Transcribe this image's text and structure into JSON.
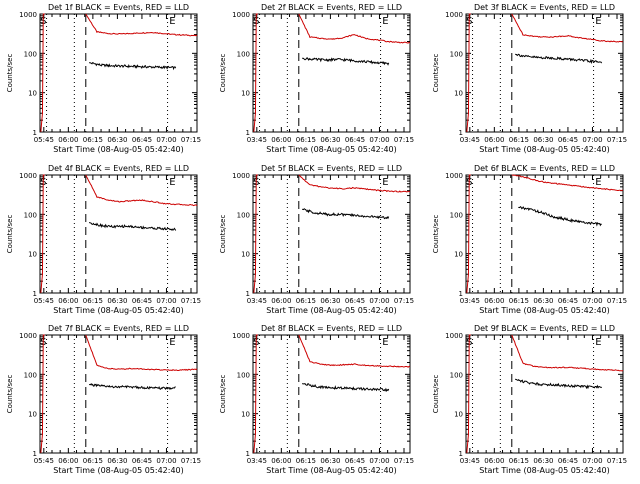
{
  "figure": {
    "background": "#ffffff",
    "axis_color": "#000000"
  },
  "chart_data": [
    {
      "type": "line",
      "title": "Det 1f BLACK = Events, RED = LLD",
      "xlabel": "Start Time (08-Aug-05 05:42:40)",
      "ylabel": "Counts/sec",
      "x_ticks": [
        "05:45",
        "06:00",
        "06:15",
        "06:30",
        "06:45",
        "07:00",
        "07:15"
      ],
      "y_ticks": [
        "1",
        "10",
        "100",
        "1000"
      ],
      "y_scale": "log",
      "xlim_min": [
        0,
        96
      ],
      "ylim": [
        1,
        1000
      ],
      "markers": {
        "S": 2,
        "E": 81
      },
      "dotted_lines_min": [
        4,
        21,
        78
      ],
      "dashed_lines_min": [
        28
      ],
      "grid": false,
      "series": [
        {
          "color": "#cc0000",
          "start_min": 28,
          "end_min": 96,
          "values": [
            1000,
            350,
            320,
            310,
            320,
            330,
            340,
            320,
            300,
            290,
            280
          ]
        },
        {
          "color": "#000000",
          "start_min": 30,
          "end_min": 83,
          "values": [
            58,
            50,
            48,
            47,
            46,
            45,
            44,
            43
          ]
        }
      ]
    },
    {
      "type": "line",
      "title": "Det 2f BLACK = Events, RED = LLD",
      "xlabel": "Start Time (08-Aug-05 05:42:40)",
      "ylabel": "Counts/sec",
      "x_ticks": [
        "03:45",
        "06:00",
        "06:15",
        "06:30",
        "06:45",
        "07:00",
        "07:15"
      ],
      "y_ticks": [
        "1",
        "10",
        "100",
        "1000"
      ],
      "y_scale": "log",
      "xlim_min": [
        0,
        96
      ],
      "ylim": [
        1,
        1000
      ],
      "markers": {
        "S": 2,
        "E": 81
      },
      "dotted_lines_min": [
        4,
        21,
        78
      ],
      "dashed_lines_min": [
        28
      ],
      "grid": false,
      "series": [
        {
          "color": "#cc0000",
          "start_min": 28,
          "end_min": 96,
          "values": [
            1000,
            260,
            240,
            230,
            250,
            300,
            240,
            220,
            200,
            190,
            185
          ]
        },
        {
          "color": "#000000",
          "start_min": 30,
          "end_min": 83,
          "values": [
            75,
            70,
            68,
            70,
            66,
            62,
            58,
            55
          ]
        }
      ]
    },
    {
      "type": "line",
      "title": "Det 3f BLACK = Events, RED = LLD",
      "xlabel": "Start Time (08-Aug-05 05:42:40)",
      "ylabel": "Counts/sec",
      "x_ticks": [
        "03:45",
        "06:00",
        "06:15",
        "06:30",
        "06:45",
        "07:00",
        "07:15"
      ],
      "y_ticks": [
        "1",
        "10",
        "100",
        "1000"
      ],
      "y_scale": "log",
      "xlim_min": [
        0,
        96
      ],
      "ylim": [
        1,
        1000
      ],
      "markers": {
        "S": 2,
        "E": 81
      },
      "dotted_lines_min": [
        4,
        21,
        78
      ],
      "dashed_lines_min": [
        28
      ],
      "grid": false,
      "series": [
        {
          "color": "#cc0000",
          "start_min": 28,
          "end_min": 96,
          "values": [
            1000,
            300,
            270,
            260,
            265,
            280,
            250,
            230,
            210,
            200,
            195
          ]
        },
        {
          "color": "#000000",
          "start_min": 30,
          "end_min": 83,
          "values": [
            95,
            82,
            78,
            76,
            72,
            68,
            63,
            60
          ]
        }
      ]
    },
    {
      "type": "line",
      "title": "Det 4f BLACK = Events, RED = LLD",
      "xlabel": "Start Time (08-Aug-05 05:42:40)",
      "ylabel": "Counts/sec",
      "x_ticks": [
        "05:45",
        "06:00",
        "06:15",
        "06:30",
        "06:45",
        "07:00",
        "07:15"
      ],
      "y_ticks": [
        "1",
        "10",
        "100",
        "1000"
      ],
      "y_scale": "log",
      "xlim_min": [
        0,
        96
      ],
      "ylim": [
        1,
        1000
      ],
      "markers": {
        "S": 2,
        "E": 81
      },
      "dotted_lines_min": [
        4,
        21,
        78
      ],
      "dashed_lines_min": [
        28
      ],
      "grid": false,
      "series": [
        {
          "color": "#cc0000",
          "start_min": 28,
          "end_min": 96,
          "values": [
            1000,
            280,
            230,
            210,
            220,
            230,
            210,
            190,
            180,
            175,
            170
          ]
        },
        {
          "color": "#000000",
          "start_min": 30,
          "end_min": 83,
          "values": [
            62,
            52,
            48,
            50,
            47,
            45,
            43,
            41
          ]
        }
      ]
    },
    {
      "type": "line",
      "title": "Det 5f BLACK = Events, RED = LLD",
      "xlabel": "Start Time (08-Aug-05 05:42:40)",
      "ylabel": "Counts/sec",
      "x_ticks": [
        "03:45",
        "06:00",
        "06:15",
        "06:30",
        "06:45",
        "07:00",
        "07:15"
      ],
      "y_ticks": [
        "1",
        "10",
        "100",
        "1000"
      ],
      "y_scale": "log",
      "xlim_min": [
        0,
        96
      ],
      "ylim": [
        1,
        1000
      ],
      "markers": {
        "S": 2,
        "E": 81
      },
      "dotted_lines_min": [
        4,
        21,
        78
      ],
      "dashed_lines_min": [
        28
      ],
      "grid": false,
      "series": [
        {
          "color": "#cc0000",
          "start_min": 28,
          "end_min": 96,
          "values": [
            1000,
            560,
            500,
            460,
            450,
            470,
            440,
            410,
            390,
            380,
            380
          ]
        },
        {
          "color": "#000000",
          "start_min": 30,
          "end_min": 83,
          "values": [
            135,
            110,
            100,
            100,
            95,
            90,
            85,
            82
          ]
        }
      ]
    },
    {
      "type": "line",
      "title": "Det 6f BLACK = Events, RED = LLD",
      "xlabel": "Start Time (08-Aug-05 05:42:40)",
      "ylabel": "Counts/sec",
      "x_ticks": [
        "03:45",
        "06:00",
        "06:15",
        "06:30",
        "06:45",
        "07:00",
        "07:15"
      ],
      "y_ticks": [
        "1",
        "10",
        "100",
        "1000"
      ],
      "y_scale": "log",
      "xlim_min": [
        0,
        96
      ],
      "ylim": [
        1,
        1000
      ],
      "markers": {
        "S": 2,
        "E": 81
      },
      "dotted_lines_min": [
        4,
        21,
        78
      ],
      "dashed_lines_min": [
        28
      ],
      "grid": false,
      "series": [
        {
          "color": "#cc0000",
          "start_min": 28,
          "end_min": 96,
          "values": [
            1000,
            900,
            750,
            650,
            600,
            560,
            520,
            480,
            450,
            420,
            400
          ]
        },
        {
          "color": "#000000",
          "start_min": 32,
          "end_min": 83,
          "values": [
            150,
            135,
            110,
            85,
            75,
            65,
            60,
            55
          ]
        }
      ]
    },
    {
      "type": "line",
      "title": "Det 7f BLACK = Events, RED = LLD",
      "xlabel": "Start Time (08-Aug-05 05:42:40)",
      "ylabel": "Counts/sec",
      "x_ticks": [
        "05:45",
        "06:00",
        "06:15",
        "06:30",
        "06:45",
        "07:00",
        "07:15"
      ],
      "y_ticks": [
        "1",
        "10",
        "100",
        "1000"
      ],
      "y_scale": "log",
      "xlim_min": [
        0,
        96
      ],
      "ylim": [
        1,
        1000
      ],
      "markers": {
        "S": 2,
        "E": 81
      },
      "dotted_lines_min": [
        4,
        21,
        78
      ],
      "dashed_lines_min": [
        28
      ],
      "grid": false,
      "series": [
        {
          "color": "#cc0000",
          "start_min": 28,
          "end_min": 96,
          "values": [
            1000,
            170,
            140,
            135,
            140,
            138,
            132,
            130,
            128,
            130,
            135
          ]
        },
        {
          "color": "#000000",
          "start_min": 30,
          "end_min": 83,
          "values": [
            55,
            50,
            48,
            48,
            47,
            45,
            44,
            45
          ]
        }
      ]
    },
    {
      "type": "line",
      "title": "Det 8f BLACK = Events, RED = LLD",
      "xlabel": "Start Time (08-Aug-05 05:42:40)",
      "ylabel": "Counts/sec",
      "x_ticks": [
        "03:45",
        "06:00",
        "06:15",
        "06:30",
        "06:45",
        "07:00",
        "07:15"
      ],
      "y_ticks": [
        "1",
        "10",
        "100",
        "1000"
      ],
      "y_scale": "log",
      "xlim_min": [
        0,
        96
      ],
      "ylim": [
        1,
        1000
      ],
      "markers": {
        "S": 2,
        "E": 81
      },
      "dotted_lines_min": [
        4,
        21,
        78
      ],
      "dashed_lines_min": [
        28
      ],
      "grid": false,
      "series": [
        {
          "color": "#cc0000",
          "start_min": 28,
          "end_min": 96,
          "values": [
            1000,
            210,
            180,
            170,
            175,
            180,
            170,
            165,
            160,
            158,
            155
          ]
        },
        {
          "color": "#000000",
          "start_min": 30,
          "end_min": 83,
          "values": [
            58,
            50,
            46,
            45,
            44,
            42,
            41,
            40
          ]
        }
      ]
    },
    {
      "type": "line",
      "title": "Det 9f BLACK = Events, RED = LLD",
      "xlabel": "Start Time (08-Aug-05 05:42:40)",
      "ylabel": "Counts/sec",
      "x_ticks": [
        "03:45",
        "06:00",
        "06:15",
        "06:30",
        "06:45",
        "07:00",
        "07:15"
      ],
      "y_ticks": [
        "1",
        "10",
        "100",
        "1000"
      ],
      "y_scale": "log",
      "xlim_min": [
        0,
        96
      ],
      "ylim": [
        1,
        1000
      ],
      "markers": {
        "S": 2,
        "E": 81
      },
      "dotted_lines_min": [
        4,
        21,
        78
      ],
      "dashed_lines_min": [
        28
      ],
      "grid": false,
      "series": [
        {
          "color": "#cc0000",
          "start_min": 28,
          "end_min": 96,
          "values": [
            1000,
            190,
            160,
            150,
            148,
            150,
            145,
            138,
            132,
            128,
            125
          ]
        },
        {
          "color": "#000000",
          "start_min": 30,
          "end_min": 83,
          "values": [
            75,
            62,
            56,
            55,
            52,
            50,
            48,
            47
          ]
        }
      ]
    }
  ]
}
